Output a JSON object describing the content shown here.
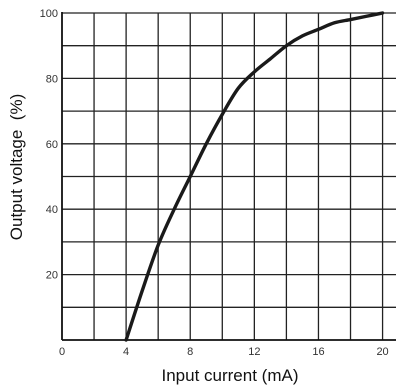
{
  "chart_data": {
    "type": "line",
    "title": "",
    "xlabel": "Input current (mA)",
    "ylabel": "Output voltage  (%)",
    "xlim": [
      0,
      20.9
    ],
    "ylim": [
      0,
      100
    ],
    "x_ticks": [
      0,
      4,
      8,
      12,
      16,
      20
    ],
    "y_ticks": [
      20,
      40,
      60,
      80,
      100
    ],
    "x_grid": [
      2,
      4,
      6,
      8,
      10,
      12,
      14,
      16,
      18,
      20
    ],
    "y_grid": [
      10,
      20,
      30,
      40,
      50,
      60,
      70,
      80,
      90,
      100
    ],
    "grid": true,
    "line_color": "#1a1a1a",
    "grid_color": "#222222",
    "series": [
      {
        "x": [
          4,
          5,
          6,
          7,
          8,
          9,
          10,
          11,
          12,
          13,
          14,
          15,
          16,
          17,
          18,
          19,
          20
        ],
        "y": [
          0,
          15,
          29,
          40,
          50,
          60,
          69,
          77,
          82,
          86,
          90,
          93,
          95,
          97,
          98,
          99,
          100
        ]
      }
    ]
  }
}
